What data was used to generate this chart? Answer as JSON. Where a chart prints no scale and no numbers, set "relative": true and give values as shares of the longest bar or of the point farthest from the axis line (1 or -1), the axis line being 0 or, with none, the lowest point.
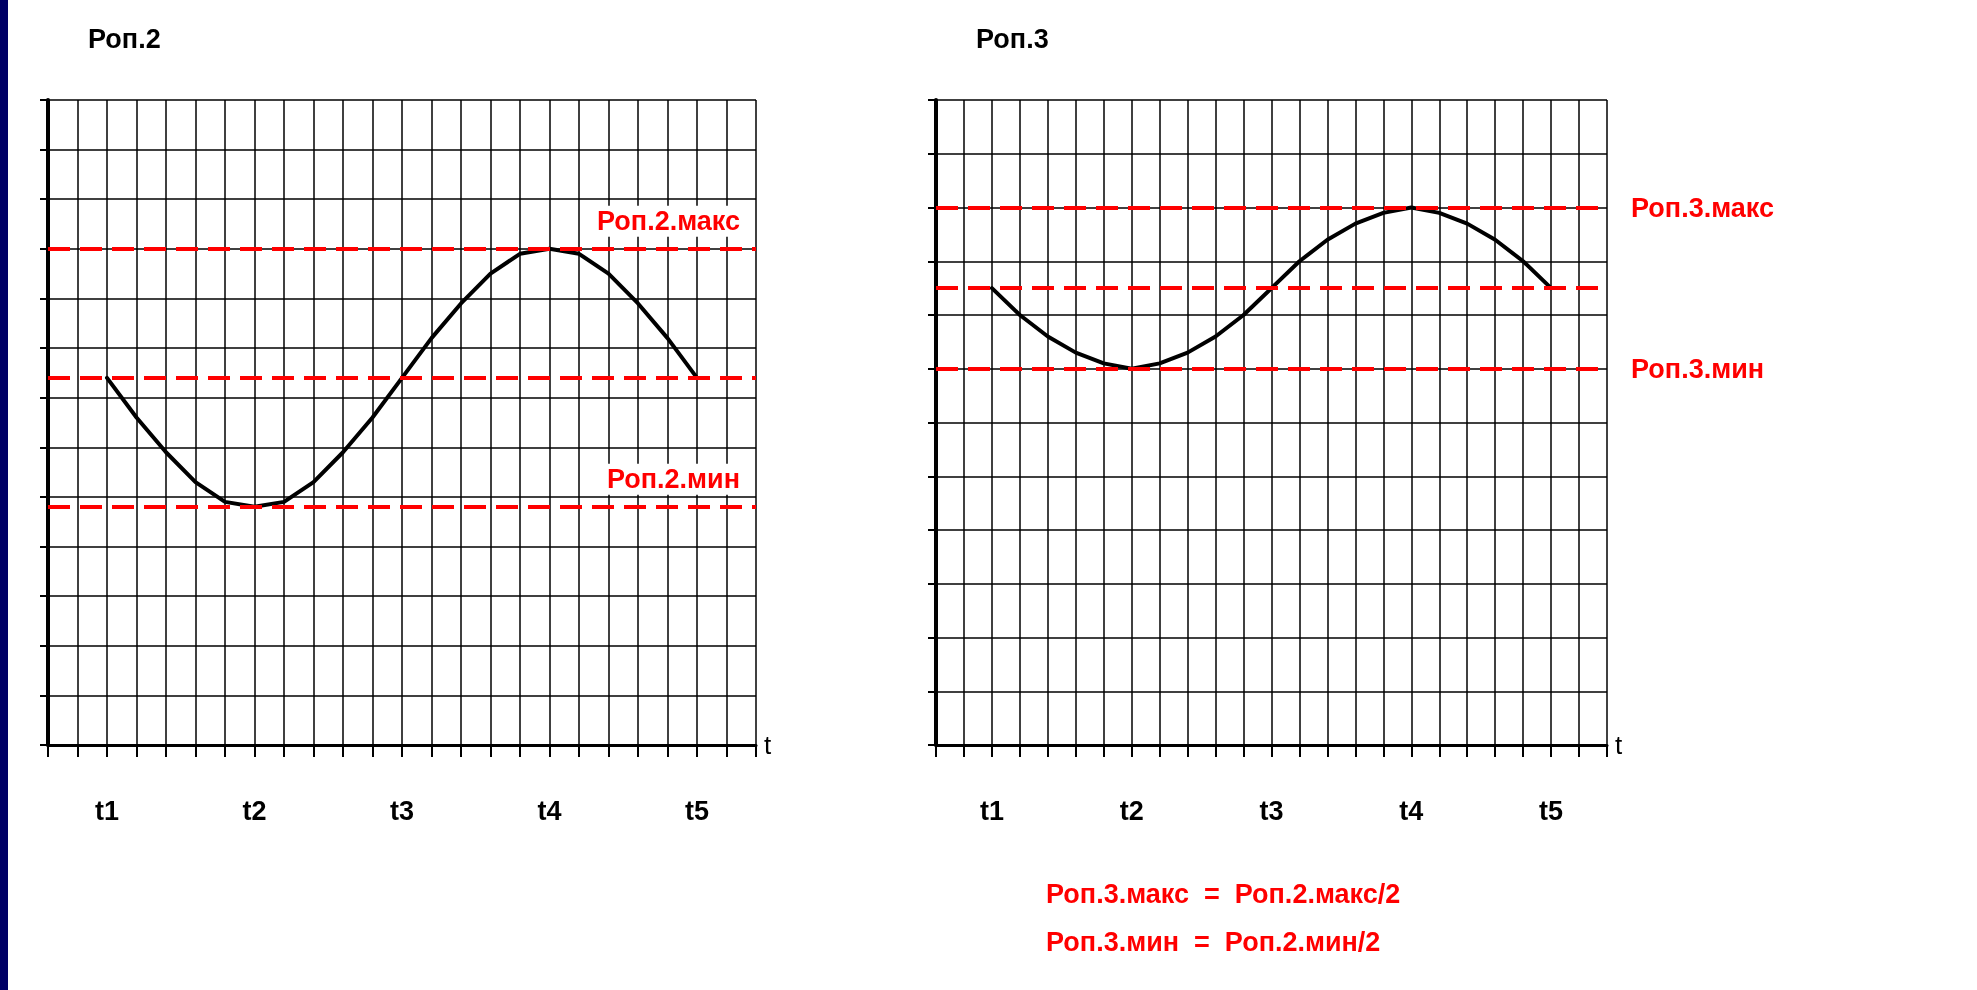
{
  "chart_data": [
    {
      "type": "line",
      "title": "Роп.2",
      "xlabel": "t",
      "relative": true,
      "grid": true,
      "marker": "none",
      "line_style": "solid",
      "categories": [
        null,
        null,
        "t1",
        null,
        null,
        null,
        null,
        "t2",
        null,
        null,
        null,
        null,
        "t3",
        null,
        null,
        null,
        null,
        "t4",
        null,
        null,
        null,
        null,
        "t5",
        null,
        null
      ],
      "series": [
        {
          "color": "#000000",
          "values": [
            null,
            null,
            0.74,
            0.66,
            0.59,
            0.53,
            0.49,
            0.48,
            0.49,
            0.53,
            0.59,
            0.66,
            0.74,
            0.82,
            0.89,
            0.95,
            0.99,
            1,
            0.99,
            0.95,
            0.89,
            0.82,
            0.74,
            null,
            null
          ]
        }
      ],
      "ref_lines": [
        {
          "axis": "y",
          "value": 1,
          "label": "Роп.2.макс",
          "color": "#ff0000",
          "line_style": "dashed"
        },
        {
          "axis": "y",
          "value": 0.74,
          "color": "#ff0000",
          "line_style": "dashed"
        },
        {
          "axis": "y",
          "value": 0.48,
          "label": "Роп.2.мин",
          "color": "#ff0000",
          "line_style": "dashed"
        }
      ]
    },
    {
      "type": "line",
      "title": "Роп.3",
      "xlabel": "t",
      "relative": true,
      "grid": true,
      "marker": "none",
      "line_style": "solid",
      "categories": [
        null,
        null,
        "t1",
        null,
        null,
        null,
        null,
        "t2",
        null,
        null,
        null,
        null,
        "t3",
        null,
        null,
        null,
        null,
        "t4",
        null,
        null,
        null,
        null,
        "t5",
        null,
        null
      ],
      "series": [
        {
          "color": "#000000",
          "values": [
            null,
            null,
            0.85,
            0.8,
            0.76,
            0.73,
            0.71,
            0.7,
            0.71,
            0.73,
            0.76,
            0.8,
            0.85,
            0.9,
            0.94,
            0.97,
            0.99,
            1,
            0.99,
            0.97,
            0.94,
            0.9,
            0.85,
            null,
            null
          ]
        }
      ],
      "ref_lines": [
        {
          "axis": "y",
          "value": 1,
          "label": "Роп.3.макс",
          "color": "#ff0000",
          "line_style": "dashed"
        },
        {
          "axis": "y",
          "value": 0.85,
          "color": "#ff0000",
          "line_style": "dashed"
        },
        {
          "axis": "y",
          "value": 0.7,
          "label": "Роп.3.мин",
          "color": "#ff0000",
          "line_style": "dashed"
        }
      ],
      "annotations": [
        "Роп.3.макс  =  Роп.2.макс/2",
        "Роп.3.мин  =  Роп.2.мин/2"
      ]
    }
  ]
}
